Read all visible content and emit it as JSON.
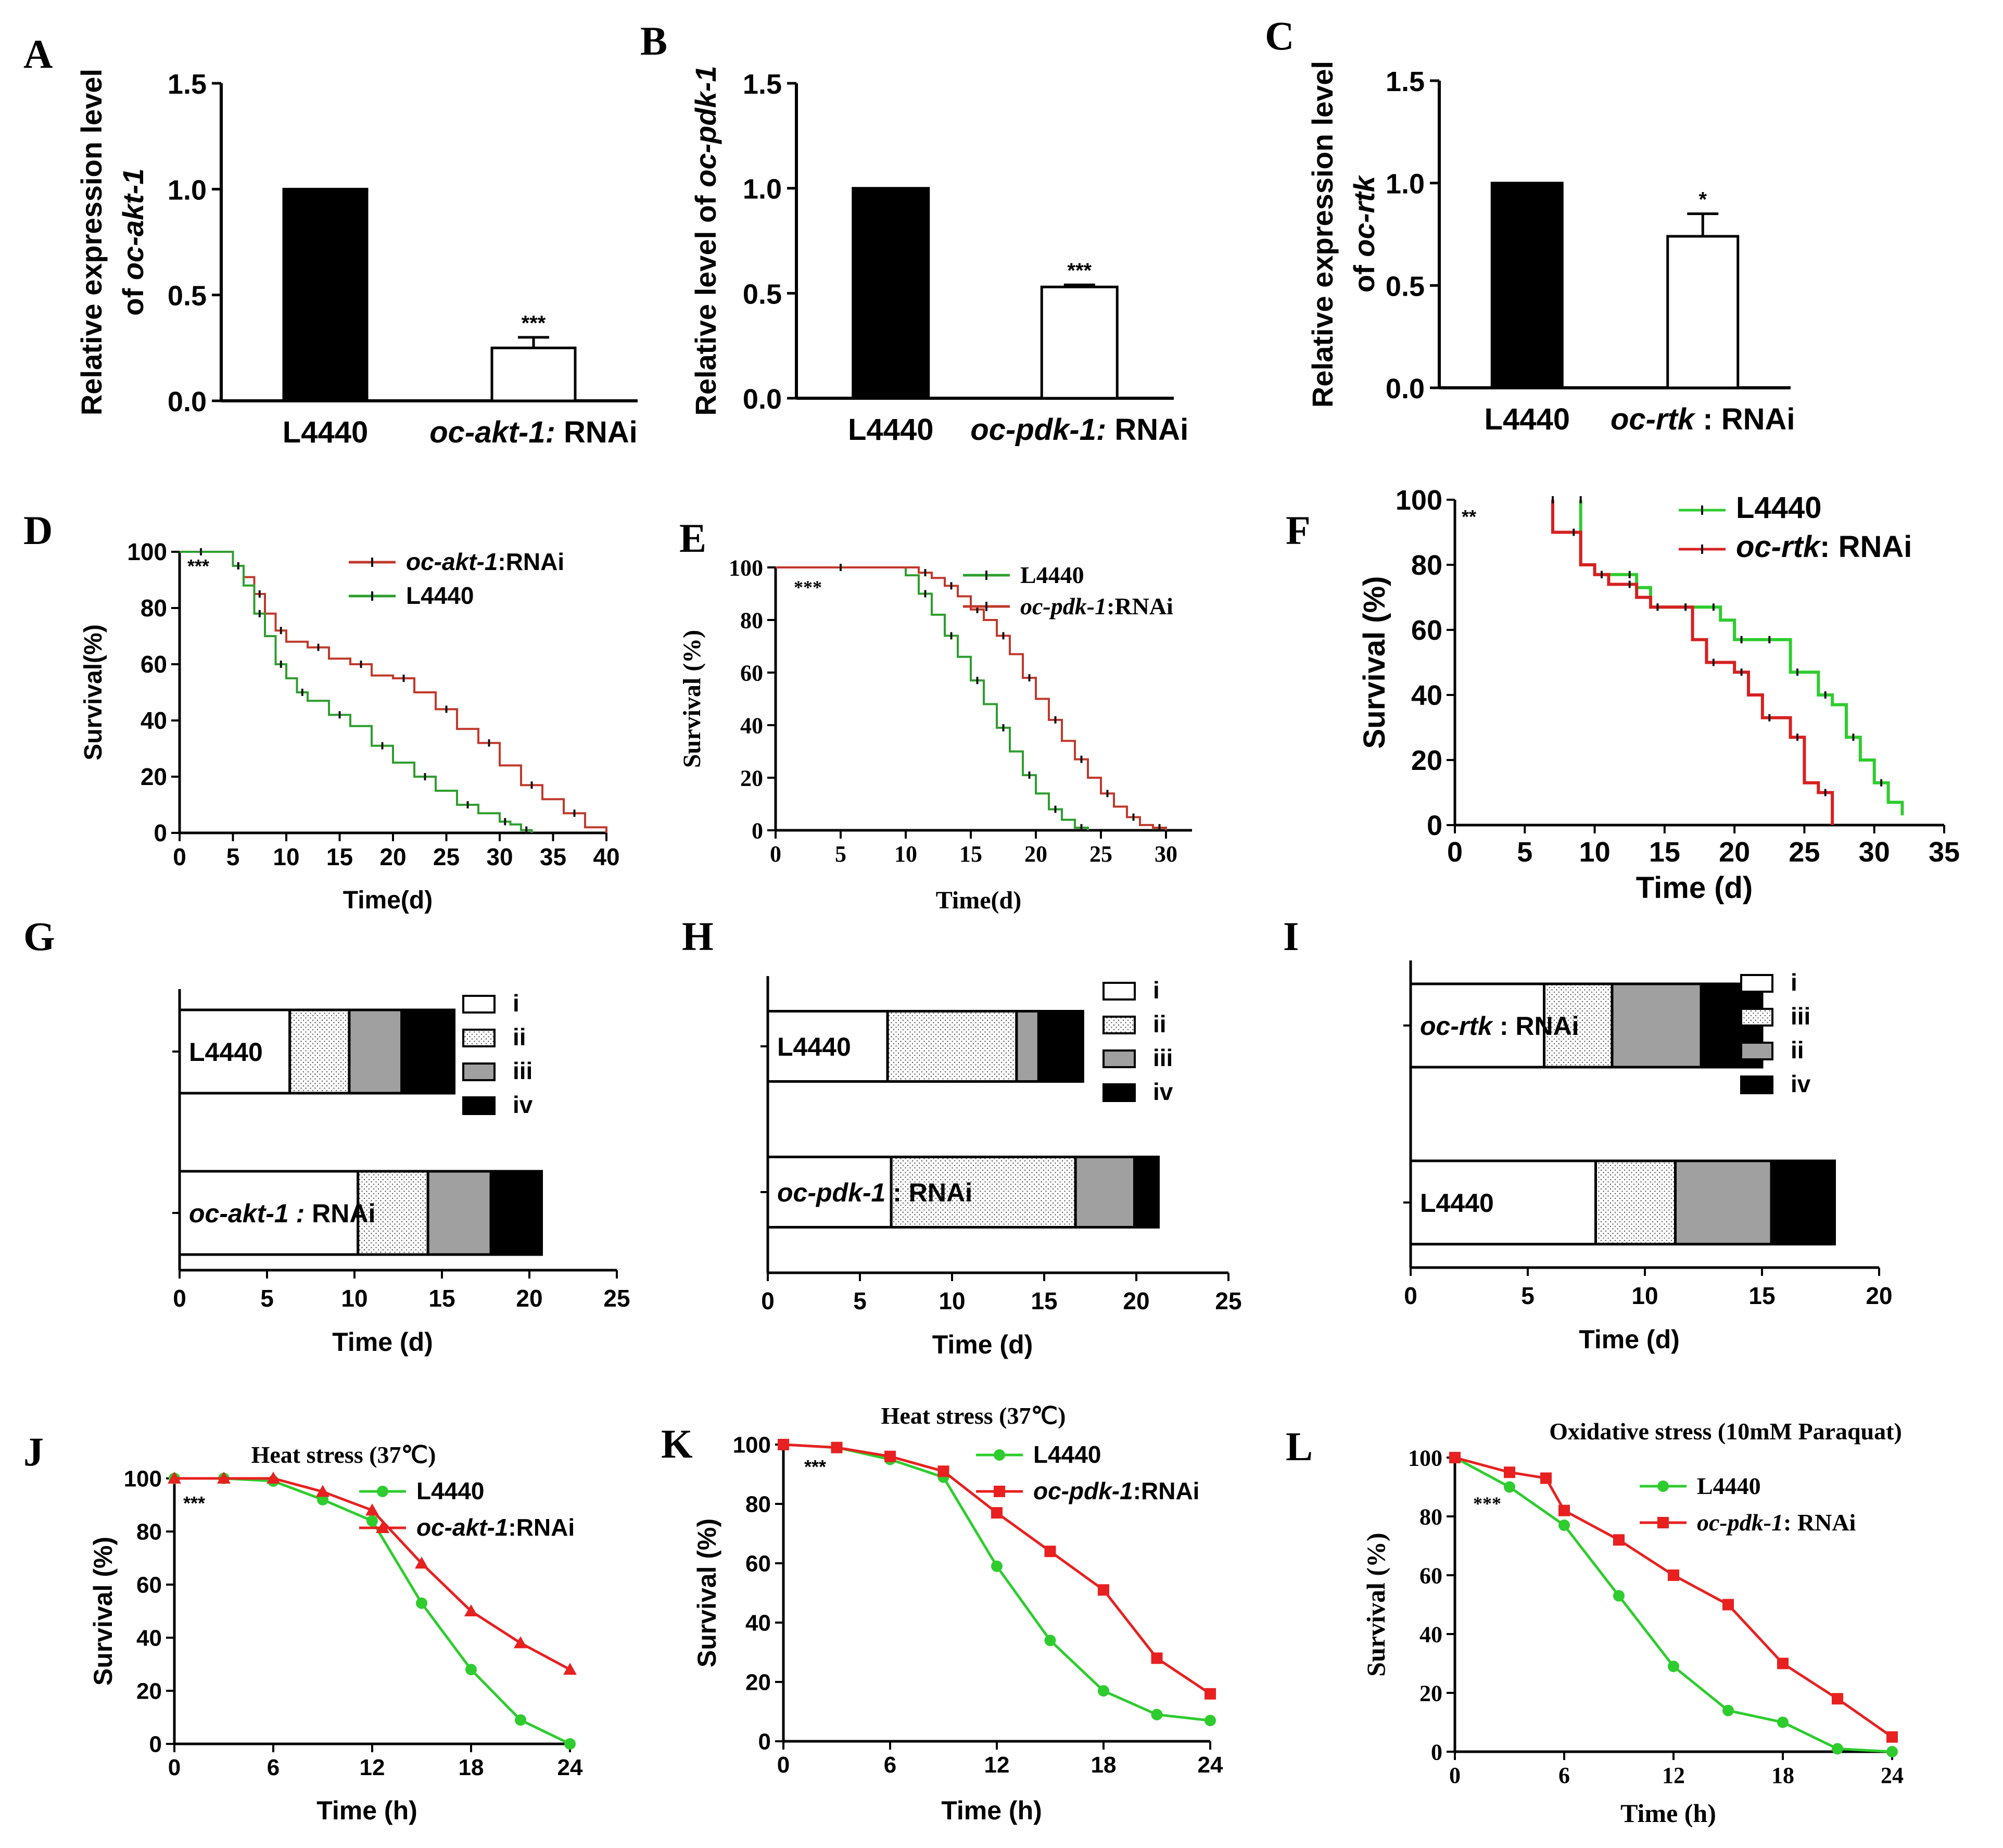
{
  "chart_data": [
    {
      "panel": "A",
      "type": "bar",
      "ylabel_lines": [
        [
          "Relative expression level"
        ],
        [
          "of ",
          "oc-akt-1",
          ""
        ]
      ],
      "ylim": [
        0,
        1.5
      ],
      "yticks": [
        "0.0",
        "0.5",
        "1.0",
        "1.5"
      ],
      "categories": [
        [
          "L4440",
          ""
        ],
        [
          "oc-akt-1:",
          " RNAi"
        ]
      ],
      "values": [
        1.0,
        0.25
      ],
      "errors": [
        0,
        0.05
      ],
      "sig": [
        "",
        "***"
      ],
      "fills": [
        "#000000",
        "#ffffff"
      ]
    },
    {
      "panel": "B",
      "type": "bar",
      "ylabel_lines": [
        [
          "Relative level of ",
          "oc-pdk-1",
          ""
        ]
      ],
      "ylim": [
        0,
        1.5
      ],
      "yticks": [
        "0.0",
        "0.5",
        "1.0",
        "1.5"
      ],
      "categories": [
        [
          "L4440",
          ""
        ],
        [
          "oc-pdk-1:",
          " RNAi"
        ]
      ],
      "values": [
        1.0,
        0.53
      ],
      "errors": [
        0,
        0.01
      ],
      "sig": [
        "",
        "***"
      ],
      "fills": [
        "#000000",
        "#ffffff"
      ]
    },
    {
      "panel": "C",
      "type": "bar",
      "ylabel_lines": [
        [
          "Relative expression level"
        ],
        [
          "of ",
          "oc-rtk",
          ""
        ]
      ],
      "ylim": [
        0,
        1.5
      ],
      "yticks": [
        "0.0",
        "0.5",
        "1.0",
        "1.5"
      ],
      "categories": [
        [
          "L4440",
          ""
        ],
        [
          "oc-rtk",
          " : RNAi"
        ]
      ],
      "values": [
        1.0,
        0.74
      ],
      "errors": [
        0,
        0.11
      ],
      "sig": [
        "",
        "*"
      ],
      "fills": [
        "#000000",
        "#ffffff"
      ]
    },
    {
      "panel": "D",
      "type": "line",
      "style": "step",
      "xlabel": "Time(d)",
      "ylabel": "Survival(%)",
      "xlim": [
        0,
        40
      ],
      "xticks": [
        0,
        5,
        10,
        15,
        20,
        25,
        30,
        35,
        40
      ],
      "ylim": [
        0,
        100
      ],
      "yticks": [
        0,
        20,
        40,
        60,
        80,
        100
      ],
      "annotation": "***",
      "legend": [
        [
          "oc-akt-1",
          ":RNAi",
          "#c0392b"
        ],
        [
          "L4440",
          "",
          "#2e9e2e"
        ]
      ],
      "series": [
        {
          "name": "oc-akt-1:RNAi",
          "color": "#c0392b",
          "x": [
            0,
            4,
            5,
            6,
            7,
            8,
            9,
            10,
            12,
            14,
            16,
            18,
            20,
            22,
            24,
            26,
            28,
            30,
            32,
            34,
            36,
            38,
            40
          ],
          "y": [
            100,
            100,
            95,
            91,
            85,
            78,
            72,
            68,
            66,
            62,
            60,
            56,
            55,
            50,
            44,
            37,
            32,
            24,
            17,
            12,
            7,
            2,
            0
          ]
        },
        {
          "name": "L4440",
          "color": "#2e9e2e",
          "x": [
            0,
            4,
            5,
            6,
            7,
            8,
            9,
            10,
            11,
            12,
            14,
            16,
            18,
            20,
            22,
            24,
            26,
            28,
            30,
            31,
            32,
            33
          ],
          "y": [
            100,
            100,
            95,
            88,
            78,
            70,
            60,
            55,
            50,
            47,
            42,
            38,
            31,
            25,
            20,
            15,
            10,
            7,
            4,
            3,
            1,
            0
          ]
        }
      ]
    },
    {
      "panel": "E",
      "type": "line",
      "style": "step",
      "xlabel": "Time(d)",
      "ylabel": "Survival (%)",
      "xlim": [
        0,
        32
      ],
      "xticks": [
        0,
        5,
        10,
        15,
        20,
        25,
        30
      ],
      "ylim": [
        0,
        100
      ],
      "yticks": [
        0,
        20,
        40,
        60,
        80,
        100
      ],
      "annotation": "***",
      "legend": [
        [
          "L4440",
          "",
          "#2e9e2e"
        ],
        [
          "oc-pdk-1",
          ":RNAi",
          "#c0392b"
        ]
      ],
      "series": [
        {
          "name": "L4440",
          "color": "#2e9e2e",
          "x": [
            0,
            10,
            11,
            12,
            13,
            14,
            15,
            16,
            17,
            18,
            19,
            20,
            21,
            22,
            23,
            24
          ],
          "y": [
            100,
            97,
            90,
            82,
            74,
            66,
            57,
            48,
            39,
            30,
            21,
            14,
            8,
            4,
            1,
            0
          ]
        },
        {
          "name": "oc-pdk-1:RNAi",
          "color": "#c0392b",
          "x": [
            0,
            10,
            11,
            12,
            13,
            14,
            15,
            16,
            17,
            18,
            19,
            20,
            21,
            22,
            23,
            24,
            25,
            26,
            27,
            28,
            29,
            30
          ],
          "y": [
            100,
            100,
            98,
            96,
            93,
            89,
            84,
            80,
            74,
            67,
            58,
            50,
            42,
            34,
            27,
            20,
            14,
            9,
            5,
            2,
            1,
            0
          ]
        }
      ]
    },
    {
      "panel": "F",
      "type": "line",
      "style": "step",
      "xlabel": "Time (d)",
      "ylabel": "Survival (%)",
      "xlim": [
        0,
        35
      ],
      "xticks": [
        0,
        5,
        10,
        15,
        20,
        25,
        30,
        35
      ],
      "ylim": [
        0,
        100
      ],
      "yticks": [
        0,
        20,
        40,
        60,
        80,
        100
      ],
      "annotation": "**",
      "legend": [
        [
          "L4440",
          "",
          "#2ecc2e"
        ],
        [
          "oc-rtk",
          ": RNAi",
          "#d62020"
        ]
      ],
      "series": [
        {
          "name": "L4440",
          "color": "#2ecc2e",
          "x": [
            9,
            9,
            10,
            11,
            12,
            13,
            14,
            15,
            16,
            17,
            18,
            19,
            20,
            21,
            22,
            23,
            24,
            25,
            26,
            27,
            28,
            29,
            30,
            31,
            32
          ],
          "y": [
            100,
            80,
            77,
            77,
            77,
            73,
            67,
            67,
            67,
            67,
            67,
            63,
            57,
            57,
            57,
            57,
            47,
            47,
            40,
            37,
            27,
            20,
            13,
            7,
            3
          ]
        },
        {
          "name": "oc-rtk: RNAi",
          "color": "#d62020",
          "x": [
            7,
            7,
            8,
            9,
            10,
            11,
            12,
            13,
            14,
            15,
            16,
            17,
            18,
            19,
            20,
            21,
            22,
            23,
            24,
            25,
            26,
            27
          ],
          "y": [
            100,
            90,
            90,
            80,
            77,
            74,
            74,
            70,
            67,
            67,
            67,
            57,
            50,
            50,
            47,
            40,
            33,
            33,
            27,
            13,
            10,
            0
          ]
        }
      ]
    },
    {
      "panel": "G",
      "type": "bar",
      "orientation": "horizontal-stacked",
      "xlabel": "Time (d)",
      "xlim": [
        0,
        25
      ],
      "xticks": [
        0,
        5,
        10,
        15,
        20,
        25
      ],
      "legend": [
        "i",
        "ii",
        "iii",
        "iv"
      ],
      "rows": [
        {
          "label": [
            "L4440",
            ""
          ],
          "segments": [
            6.3,
            3.4,
            3.0,
            3.0
          ]
        },
        {
          "label": [
            "oc-akt-1 :",
            "  RNAi"
          ],
          "segments": [
            10.2,
            4.0,
            3.6,
            2.9
          ]
        }
      ]
    },
    {
      "panel": "H",
      "type": "bar",
      "orientation": "horizontal-stacked",
      "xlabel": "Time (d)",
      "xlim": [
        0,
        25
      ],
      "xticks": [
        0,
        5,
        10,
        15,
        20,
        25
      ],
      "legend": [
        "i",
        "ii",
        "iii",
        "iv"
      ],
      "rows": [
        {
          "label": [
            "L4440",
            ""
          ],
          "segments": [
            6.5,
            7.0,
            1.2,
            2.4
          ]
        },
        {
          "label": [
            "oc-pdk-1",
            " : RNAi"
          ],
          "segments": [
            6.7,
            10.0,
            3.2,
            1.3
          ]
        }
      ]
    },
    {
      "panel": "I",
      "type": "bar",
      "orientation": "horizontal-stacked",
      "xlabel": "Time (d)",
      "xlim": [
        0,
        20
      ],
      "xticks": [
        0,
        5,
        10,
        15,
        20
      ],
      "legend": [
        "i",
        "iii",
        "ii",
        "iv"
      ],
      "rows": [
        {
          "label": [
            "oc-rtk",
            " : RNAi"
          ],
          "segments": [
            5.7,
            2.9,
            3.8,
            2.6
          ]
        },
        {
          "label": [
            "L4440",
            ""
          ],
          "segments": [
            7.9,
            3.4,
            4.1,
            2.7
          ]
        }
      ]
    },
    {
      "panel": "J",
      "type": "line",
      "style": "markers",
      "title": "Heat stress (37℃)",
      "xlabel": "Time (h)",
      "ylabel": "Survival (%)",
      "xlim": [
        0,
        24
      ],
      "xticks": [
        0,
        6,
        12,
        18,
        24
      ],
      "ylim": [
        0,
        100
      ],
      "yticks": [
        0,
        20,
        40,
        60,
        80,
        100
      ],
      "annotation": "***",
      "legend": [
        [
          "L4440",
          "",
          "#2ecc2e"
        ],
        [
          "oc-akt-1",
          ":RNAi",
          "#e82020"
        ]
      ],
      "series": [
        {
          "name": "L4440",
          "color": "#2ecc2e",
          "marker": "circle",
          "x": [
            0,
            3,
            6,
            9,
            12,
            15,
            18,
            21,
            24
          ],
          "y": [
            100,
            100,
            99,
            92,
            84,
            53,
            28,
            9,
            0
          ]
        },
        {
          "name": "oc-akt-1:RNAi",
          "color": "#e82020",
          "marker": "triangle",
          "x": [
            0,
            3,
            6,
            9,
            12,
            15,
            18,
            21,
            24
          ],
          "y": [
            100,
            100,
            100,
            95,
            88,
            68,
            50,
            38,
            28
          ]
        }
      ]
    },
    {
      "panel": "K",
      "type": "line",
      "style": "markers",
      "title": "Heat stress (37℃)",
      "xlabel": "Time (h)",
      "ylabel": "Survival (%)",
      "xlim": [
        0,
        24
      ],
      "xticks": [
        0,
        6,
        12,
        18,
        24
      ],
      "ylim": [
        0,
        100
      ],
      "yticks": [
        0,
        20,
        40,
        60,
        80,
        100
      ],
      "annotation": "***",
      "legend": [
        [
          "L4440",
          "",
          "#2ecc2e"
        ],
        [
          "oc-pdk-1",
          ":RNAi",
          "#e82020"
        ]
      ],
      "series": [
        {
          "name": "L4440",
          "color": "#2ecc2e",
          "marker": "circle",
          "x": [
            0,
            3,
            6,
            9,
            12,
            15,
            18,
            21,
            24
          ],
          "y": [
            100,
            99,
            95,
            89,
            59,
            34,
            17,
            9,
            7
          ]
        },
        {
          "name": "oc-pdk-1:RNAi",
          "color": "#e82020",
          "marker": "square",
          "x": [
            0,
            3,
            6,
            9,
            12,
            15,
            18,
            21,
            24
          ],
          "y": [
            100,
            99,
            96,
            91,
            77,
            64,
            51,
            28,
            16
          ]
        }
      ]
    },
    {
      "panel": "L",
      "type": "line",
      "style": "markers",
      "title": "Oxidative stress (10mM Paraquat)",
      "xlabel": "Time (h)",
      "ylabel": "Survival (%)",
      "xlim": [
        0,
        24
      ],
      "xticks": [
        0,
        6,
        12,
        18,
        24
      ],
      "ylim": [
        0,
        100
      ],
      "yticks": [
        0,
        20,
        40,
        60,
        80,
        100
      ],
      "annotation": "***",
      "legend": [
        [
          "L4440",
          "",
          "#2ecc2e"
        ],
        [
          "oc-pdk-1",
          ": RNAi",
          "#e82020"
        ]
      ],
      "series": [
        {
          "name": "L4440",
          "color": "#2ecc2e",
          "marker": "circle",
          "x": [
            0,
            3,
            6,
            9,
            12,
            15,
            18,
            21,
            24
          ],
          "y": [
            100,
            90,
            77,
            53,
            29,
            14,
            10,
            1,
            0
          ]
        },
        {
          "name": "oc-pdk-1: RNAi",
          "color": "#e82020",
          "marker": "square",
          "x": [
            0,
            3,
            5,
            6,
            9,
            12,
            15,
            18,
            21,
            24
          ],
          "y": [
            100,
            95,
            93,
            82,
            72,
            60,
            50,
            30,
            18,
            5
          ]
        }
      ]
    }
  ]
}
